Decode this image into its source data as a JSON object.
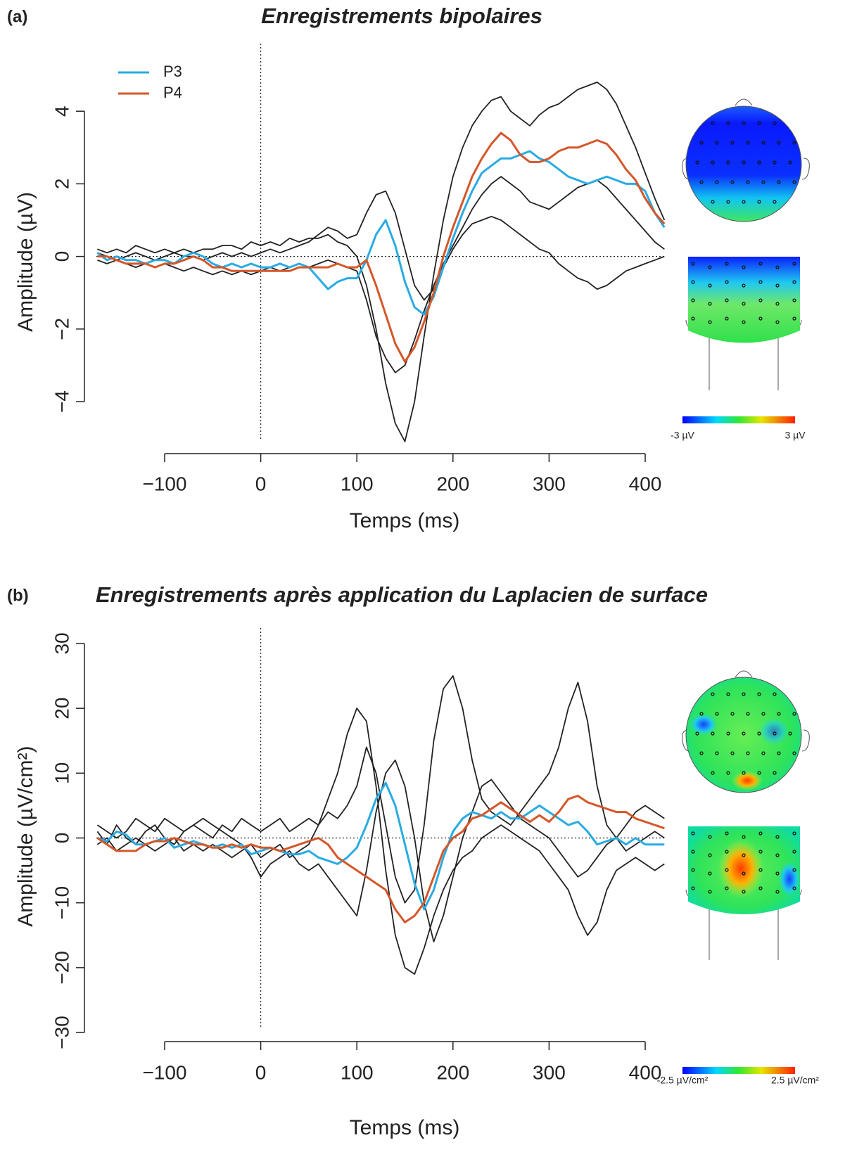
{
  "chart_data": [
    {
      "type": "line",
      "panel": "(a)",
      "title": "Enregistrements bipolaires",
      "x_label": "Temps (ms)",
      "y_label": "Amplitude (µV)",
      "xlim": [
        -171,
        421
      ],
      "ylim": [
        -5.2,
        4.9
      ],
      "xticks": [
        {
          "value": -100,
          "label": "−100"
        },
        0,
        100,
        200,
        300,
        400
      ],
      "yticks": [
        {
          "value": -4,
          "label": "−4"
        },
        {
          "value": -2,
          "label": "−2"
        },
        0,
        2,
        4
      ],
      "legend": "top-left",
      "colorbar_labels": [
        "-3 µV",
        "3 µV"
      ],
      "x": [
        -170,
        -160,
        -150,
        -140,
        -130,
        -120,
        -110,
        -100,
        -90,
        -80,
        -70,
        -60,
        -50,
        -40,
        -30,
        -20,
        -10,
        0,
        10,
        20,
        30,
        40,
        50,
        60,
        70,
        80,
        90,
        100,
        110,
        120,
        130,
        140,
        150,
        160,
        170,
        180,
        190,
        200,
        210,
        220,
        230,
        240,
        250,
        260,
        270,
        280,
        290,
        300,
        310,
        320,
        330,
        340,
        350,
        360,
        370,
        380,
        390,
        400,
        410,
        420
      ],
      "series": [
        {
          "color": "#222222",
          "values": [
            0.2,
            0.1,
            0.2,
            0.1,
            0.3,
            0.2,
            0.1,
            0.2,
            0.1,
            0.2,
            0.1,
            0.2,
            0.2,
            0.3,
            0.3,
            0.2,
            0.4,
            0.3,
            0.4,
            0.3,
            0.5,
            0.4,
            0.5,
            0.5,
            0.6,
            0.4,
            0.3,
            0,
            -0.8,
            -2.0,
            -3.5,
            -4.6,
            -5.1,
            -4.0,
            -2.2,
            -0.5,
            1.0,
            2.2,
            3.0,
            3.6,
            4.0,
            4.3,
            4.4,
            4.0,
            3.8,
            3.6,
            3.9,
            4.1,
            4.2,
            4.4,
            4.6,
            4.7,
            4.8,
            4.6,
            4.2,
            3.6,
            3.0,
            2.3,
            1.6,
            1.0
          ]
        },
        {
          "color": "#222222",
          "values": [
            0.1,
            0,
            -0.1,
            0,
            0.1,
            0,
            -0.1,
            0,
            0.1,
            0,
            0,
            -0.1,
            0,
            0.1,
            0,
            0.1,
            0,
            0.1,
            0.2,
            0.1,
            0.2,
            0.3,
            0.4,
            0.6,
            0.8,
            0.7,
            0.5,
            0.6,
            1.2,
            1.7,
            1.8,
            1.2,
            0.2,
            -0.8,
            -1.2,
            -0.9,
            -0.3,
            0.2,
            0.6,
            0.9,
            1.0,
            1.1,
            1.0,
            0.8,
            0.6,
            0.4,
            0.2,
            0.1,
            -0.2,
            -0.4,
            -0.6,
            -0.7,
            -0.9,
            -0.8,
            -0.6,
            -0.4,
            -0.3,
            -0.2,
            -0.1,
            0
          ]
        },
        {
          "color": "#222222",
          "values": [
            -0.1,
            -0.2,
            -0.1,
            -0.2,
            -0.3,
            -0.2,
            -0.3,
            -0.2,
            -0.3,
            -0.4,
            -0.3,
            -0.4,
            -0.5,
            -0.4,
            -0.5,
            -0.4,
            -0.5,
            -0.4,
            -0.3,
            -0.4,
            -0.3,
            -0.2,
            -0.3,
            -0.2,
            -0.1,
            -0.2,
            -0.3,
            -0.4,
            -1.2,
            -2.2,
            -2.8,
            -3.2,
            -3.0,
            -2.3,
            -1.5,
            -0.8,
            -0.2,
            0.3,
            0.8,
            1.3,
            1.7,
            2.0,
            2.2,
            2.0,
            1.8,
            1.5,
            1.4,
            1.3,
            1.5,
            1.7,
            1.9,
            2.0,
            2.1,
            1.9,
            1.6,
            1.3,
            1.0,
            0.7,
            0.4,
            0.2
          ]
        },
        {
          "name": "P3",
          "color": "#29abe2",
          "values": [
            0.1,
            -0.1,
            0,
            -0.1,
            -0.1,
            -0.2,
            -0.1,
            -0.1,
            -0.2,
            0,
            0.1,
            0,
            -0.2,
            -0.3,
            -0.2,
            -0.3,
            -0.2,
            -0.3,
            -0.3,
            -0.2,
            -0.3,
            -0.2,
            -0.3,
            -0.6,
            -0.9,
            -0.7,
            -0.6,
            -0.6,
            -0.1,
            0.6,
            1.0,
            0.3,
            -0.7,
            -1.4,
            -1.6,
            -1.1,
            -0.3,
            0.5,
            1.2,
            1.8,
            2.3,
            2.5,
            2.7,
            2.7,
            2.8,
            2.9,
            2.7,
            2.6,
            2.4,
            2.2,
            2.1,
            2.0,
            2.1,
            2.2,
            2.1,
            2.0,
            2.0,
            1.8,
            1.2,
            0.8
          ]
        },
        {
          "name": "P4",
          "color": "#d4572a",
          "values": [
            0,
            0,
            -0.1,
            -0.2,
            -0.2,
            -0.2,
            -0.3,
            -0.2,
            -0.2,
            -0.1,
            0,
            -0.1,
            -0.3,
            -0.3,
            -0.4,
            -0.4,
            -0.4,
            -0.4,
            -0.4,
            -0.4,
            -0.4,
            -0.3,
            -0.3,
            -0.3,
            -0.3,
            -0.2,
            -0.3,
            -0.3,
            -0.1,
            -0.8,
            -1.6,
            -2.4,
            -2.9,
            -2.5,
            -1.8,
            -1.0,
            0,
            0.8,
            1.5,
            2.2,
            2.7,
            3.1,
            3.4,
            3.2,
            2.8,
            2.6,
            2.6,
            2.7,
            2.9,
            3.0,
            3.0,
            3.1,
            3.2,
            3.1,
            2.8,
            2.4,
            2.1,
            1.6,
            1.2,
            0.9
          ]
        }
      ]
    },
    {
      "type": "line",
      "panel": "(b)",
      "title": "Enregistrements après application du Laplacien de surface",
      "x_label": "Temps (ms)",
      "y_label": "Amplitude (µV/cm²)",
      "xlim": [
        -171,
        421
      ],
      "ylim": [
        -31.5,
        32
      ],
      "xticks": [
        {
          "value": -100,
          "label": "−100"
        },
        0,
        100,
        200,
        300,
        400
      ],
      "yticks": [
        {
          "value": -30,
          "label": "−30"
        },
        {
          "value": -20,
          "label": "−20"
        },
        {
          "value": -10,
          "label": "−10"
        },
        0,
        10,
        20,
        30
      ],
      "colorbar_labels": [
        "-2.5 µV/cm²",
        "2.5 µV/cm²"
      ],
      "x": [
        -170,
        -160,
        -150,
        -140,
        -130,
        -120,
        -110,
        -100,
        -90,
        -80,
        -70,
        -60,
        -50,
        -40,
        -30,
        -20,
        -10,
        0,
        10,
        20,
        30,
        40,
        50,
        60,
        70,
        80,
        90,
        100,
        110,
        120,
        130,
        140,
        150,
        160,
        170,
        180,
        190,
        200,
        210,
        220,
        230,
        240,
        250,
        260,
        270,
        280,
        290,
        300,
        310,
        320,
        330,
        340,
        350,
        360,
        370,
        380,
        390,
        400,
        410,
        420
      ],
      "series": [
        {
          "color": "#222222",
          "values": [
            1,
            -1,
            2,
            0,
            -1,
            1,
            2,
            0,
            -1,
            1,
            2,
            1,
            0,
            2,
            1,
            3,
            2,
            1,
            2,
            3,
            1,
            2,
            3,
            2,
            4,
            3,
            5,
            8,
            14,
            10,
            2,
            -6,
            -10,
            -8,
            2,
            15,
            23,
            25,
            20,
            12,
            6,
            4,
            3,
            2,
            4,
            6,
            8,
            10,
            14,
            20,
            24,
            18,
            8,
            2,
            0,
            -2,
            -1,
            0,
            1,
            0
          ]
        },
        {
          "color": "#222222",
          "values": [
            -1,
            0,
            -2,
            -1,
            0,
            -1,
            -2,
            -1,
            0,
            -2,
            -1,
            -2,
            -1,
            -2,
            -3,
            -2,
            -1,
            -3,
            -2,
            -1,
            -3,
            -2,
            -1,
            2,
            6,
            10,
            16,
            20,
            18,
            8,
            -5,
            -15,
            -20,
            -21,
            -17,
            -12,
            -8,
            -5,
            -3,
            -2,
            0,
            1,
            2,
            1,
            0,
            -1,
            -2,
            -4,
            -6,
            -8,
            -12,
            -15,
            -13,
            -8,
            -5,
            -4,
            -3,
            -4,
            -5,
            -4
          ]
        },
        {
          "color": "#222222",
          "values": [
            2,
            1,
            0,
            1,
            3,
            2,
            1,
            3,
            2,
            1,
            2,
            3,
            2,
            1,
            0,
            -1,
            -3,
            -6,
            -4,
            -3,
            -2,
            -4,
            -5,
            -4,
            -6,
            -8,
            -10,
            -12,
            -5,
            4,
            10,
            12,
            8,
            0,
            -10,
            -16,
            -12,
            -6,
            0,
            4,
            8,
            9,
            7,
            5,
            3,
            2,
            1,
            0,
            -2,
            -4,
            -6,
            -5,
            -3,
            -1,
            0,
            2,
            4,
            5,
            4,
            3
          ]
        },
        {
          "name": "P3",
          "color": "#29abe2",
          "values": [
            0,
            -0.5,
            1,
            0.5,
            -1,
            -1,
            -0.5,
            0,
            -1.5,
            -1,
            -0.5,
            -1,
            -1.5,
            -1,
            -1.5,
            -1,
            -2.5,
            -2,
            -1.5,
            -2,
            -2.5,
            -2.5,
            -2,
            -3,
            -3.5,
            -4,
            -3,
            -1.5,
            2,
            6,
            8.5,
            5,
            -1,
            -7,
            -11,
            -8,
            -3,
            1,
            3,
            4,
            3.5,
            3,
            4,
            3,
            3,
            4,
            5,
            4,
            3,
            2,
            2.5,
            1,
            -1,
            -0.5,
            0,
            -1,
            0,
            -1,
            -1,
            -1
          ]
        },
        {
          "name": "P4",
          "color": "#d4572a",
          "values": [
            0,
            -1,
            -2,
            -2,
            -2,
            -1,
            -0.5,
            -0.5,
            0,
            -0.5,
            -1,
            -1,
            -1.5,
            -1.5,
            -1,
            -1.5,
            -1,
            -1.5,
            -1.5,
            -2,
            -1.5,
            -1,
            -0.5,
            0,
            -1,
            -3,
            -4,
            -5,
            -6,
            -7,
            -8,
            -11,
            -13,
            -12,
            -10,
            -6,
            -2,
            0,
            1,
            3,
            3.5,
            4.5,
            5.5,
            4.5,
            3.5,
            2.5,
            3.5,
            2.5,
            4,
            6,
            6.5,
            5.5,
            5,
            4.5,
            4,
            4,
            3,
            2.5,
            2,
            1.5
          ]
        }
      ]
    }
  ]
}
